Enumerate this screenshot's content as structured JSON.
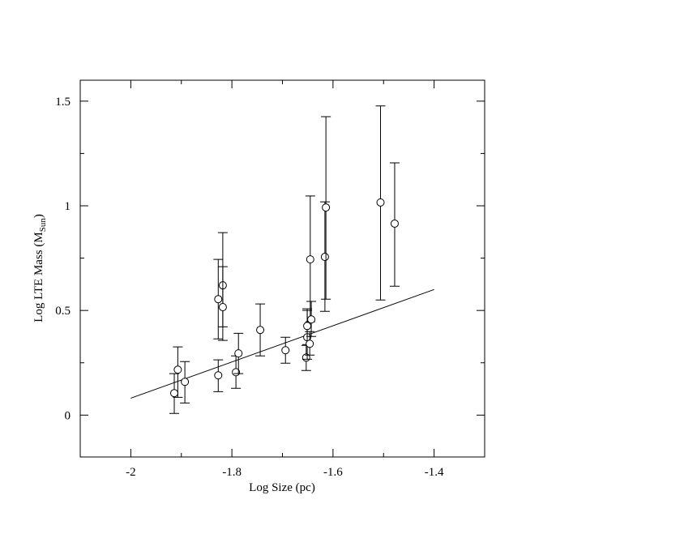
{
  "chart_data": {
    "type": "scatter",
    "x_label": "Log Size (pc)",
    "y_label": {
      "text": "Log LTE Mass (M",
      "sub": "Sun",
      "end": ")"
    },
    "xlim": [
      -2.1,
      -1.3
    ],
    "ylim": [
      -0.2,
      1.6
    ],
    "xticks": [
      -2,
      -1.8,
      -1.6,
      -1.4
    ],
    "yticks": [
      0,
      0.5,
      1,
      1.5
    ],
    "color": "#000000",
    "x": [
      -1.914,
      -1.907,
      -1.893,
      -1.827,
      -1.827,
      -1.818,
      -1.818,
      -1.792,
      -1.787,
      -1.744,
      -1.694,
      -1.653,
      -1.651,
      -1.651,
      -1.646,
      -1.645,
      -1.643,
      -1.616,
      -1.614,
      -1.506,
      -1.478
    ],
    "values": [
      0.105,
      0.217,
      0.159,
      0.19,
      0.554,
      0.62,
      0.516,
      0.205,
      0.295,
      0.407,
      0.31,
      0.275,
      0.372,
      0.426,
      0.341,
      0.744,
      0.457,
      0.756,
      0.992,
      1.016,
      0.915
    ],
    "error_low": [
      0.008,
      0.085,
      0.058,
      0.112,
      0.364,
      0.422,
      0.357,
      0.128,
      0.198,
      0.283,
      0.248,
      0.213,
      0.267,
      0.337,
      0.287,
      0.446,
      0.376,
      0.496,
      0.554,
      0.55,
      0.616
    ],
    "error_high": [
      0.198,
      0.326,
      0.256,
      0.264,
      0.744,
      0.872,
      0.709,
      0.283,
      0.391,
      0.531,
      0.372,
      0.333,
      0.5,
      0.508,
      0.399,
      1.047,
      0.543,
      1.019,
      1.426,
      1.477,
      1.205
    ],
    "fit_line": {
      "x": [
        -2,
        -1.4
      ],
      "values": [
        0.081,
        0.6
      ]
    }
  }
}
